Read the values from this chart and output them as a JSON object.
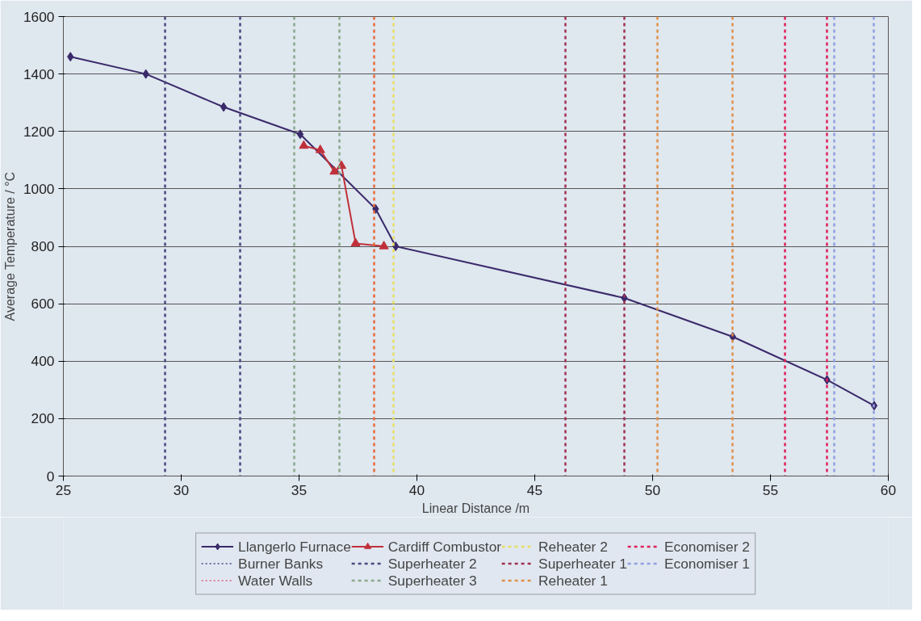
{
  "chart_data": {
    "type": "line",
    "xlabel": "Linear Distance /m",
    "ylabel": "Average Temperature / °C",
    "xlim": [
      25,
      60
    ],
    "xticks": [
      25,
      30,
      35,
      40,
      45,
      50,
      55,
      60
    ],
    "ylim": [
      0,
      1600
    ],
    "yticks": [
      0,
      200,
      400,
      600,
      800,
      1000,
      1200,
      1400,
      1600
    ],
    "grid": "y",
    "legend": "bottom",
    "series": [
      {
        "name": "Llangerlo Furnace",
        "color": "#3a2a6a",
        "marker": "diamond",
        "line_style": "solid",
        "x": [
          25.3,
          28.5,
          31.8,
          35.05,
          38.25,
          39.1,
          48.8,
          53.4,
          57.4,
          59.4
        ],
        "values": [
          1460,
          1400,
          1285,
          1190,
          930,
          800,
          620,
          485,
          335,
          245
        ]
      },
      {
        "name": "Burner Banks",
        "color": "#6a6aa8",
        "marker": "none",
        "line_style": "dotted"
      },
      {
        "name": "Water Walls",
        "color": "#e07a9a",
        "marker": "none",
        "line_style": "dotted"
      },
      {
        "name": "Cardiff Combustor",
        "color": "#c0303a",
        "marker": "triangle",
        "line_style": "solid",
        "x": [
          35.2,
          35.9,
          36.5,
          36.8,
          37.4,
          38.6
        ],
        "values": [
          1150,
          1135,
          1060,
          1080,
          810,
          800
        ]
      }
    ],
    "ref_lines": [
      {
        "axis": "x",
        "value": 29.3,
        "label": "Superheater 2",
        "color": "#4a4880",
        "line_style": "dashed"
      },
      {
        "axis": "x",
        "value": 32.5,
        "color": "#4a4880",
        "line_style": "dashed"
      },
      {
        "axis": "x",
        "value": 34.8,
        "label": "Superheater 3",
        "color": "#8aa88a",
        "line_style": "dashed"
      },
      {
        "axis": "x",
        "value": 36.7,
        "color": "#8aa88a",
        "line_style": "dashed"
      },
      {
        "axis": "x",
        "value": 38.2,
        "color": "#e86a3a",
        "line_style": "dashed"
      },
      {
        "axis": "x",
        "value": 39.0,
        "label": "Reheater 2",
        "color": "#e8e060",
        "line_style": "dashed"
      },
      {
        "axis": "x",
        "value": 46.3,
        "label": "Superheater 1",
        "color": "#a03050",
        "line_style": "dashed"
      },
      {
        "axis": "x",
        "value": 48.8,
        "color": "#a03050",
        "line_style": "dashed"
      },
      {
        "axis": "x",
        "value": 50.2,
        "label": "Reheater 1",
        "color": "#e0904a",
        "line_style": "dashed"
      },
      {
        "axis": "x",
        "value": 53.4,
        "color": "#e0904a",
        "line_style": "dashed"
      },
      {
        "axis": "x",
        "value": 55.6,
        "label": "Economiser 2",
        "color": "#e0205a",
        "line_style": "dashed"
      },
      {
        "axis": "x",
        "value": 57.4,
        "color": "#e0205a",
        "line_style": "dashed"
      },
      {
        "axis": "x",
        "value": 57.7,
        "label": "Economiser 1",
        "color": "#8fa0e0",
        "line_style": "dashed"
      },
      {
        "axis": "x",
        "value": 59.4,
        "color": "#8fa0e0",
        "line_style": "dashed"
      }
    ]
  }
}
